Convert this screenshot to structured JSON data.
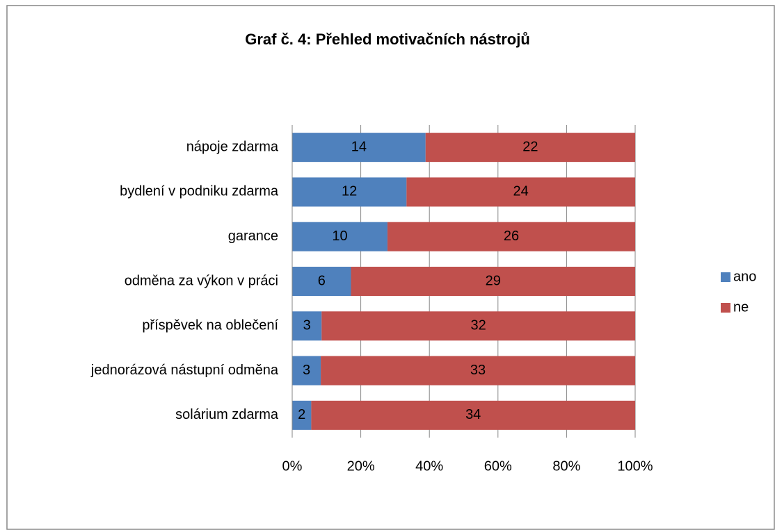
{
  "chart_data": {
    "type": "bar",
    "orientation": "horizontal",
    "stack": "percent",
    "title": "Graf č. 4: Přehled motivačních nástrojů",
    "categories": [
      "nápoje zdarma",
      "bydlení v podniku zdarma",
      "garance",
      "odměna za výkon v práci",
      "příspěvek na oblečení",
      "jednorázová nástupní odměna",
      "solárium zdarma"
    ],
    "series": [
      {
        "name": "ano",
        "color": "#4f81bd",
        "values": [
          14,
          12,
          10,
          6,
          3,
          3,
          2
        ]
      },
      {
        "name": "ne",
        "color": "#c0504d",
        "values": [
          22,
          24,
          26,
          29,
          32,
          33,
          34
        ]
      }
    ],
    "xlim": [
      0,
      100
    ],
    "xticks": [
      {
        "value": 0,
        "label": "0%"
      },
      {
        "value": 20,
        "label": "20%"
      },
      {
        "value": 40,
        "label": "40%"
      },
      {
        "value": 60,
        "label": "60%"
      },
      {
        "value": 80,
        "label": "80%"
      },
      {
        "value": 100,
        "label": "100%"
      }
    ],
    "grid": true,
    "legend": "right"
  }
}
